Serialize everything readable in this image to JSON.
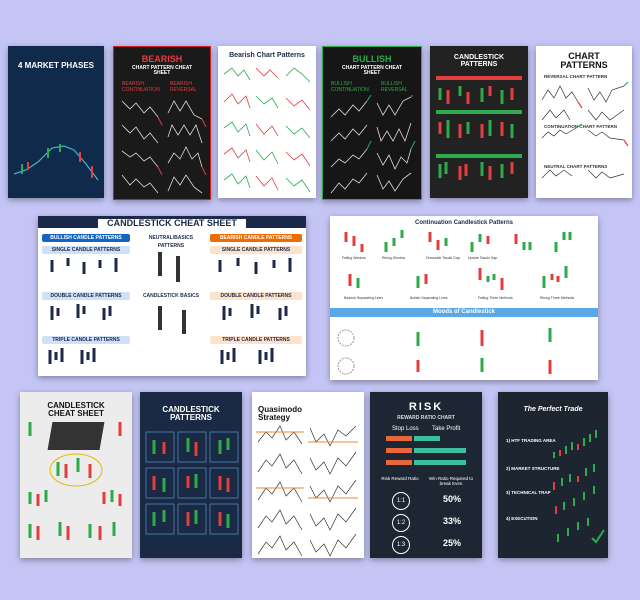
{
  "posters": {
    "p1": {
      "title": "4 MARKET PHASES"
    },
    "p2": {
      "title_bearish": "BEARISH",
      "title_sub": "CHART PATTERN CHEAT SHEET",
      "col1": "BEARISH CONTINUATION",
      "col2": "BEARISH REVERSAL",
      "items": [
        "Descending Triangle",
        "Double Top",
        "Bearish Wedge",
        "Triple Top",
        "Bearish Pennant",
        "Head & Shoulders",
        "Bearish Flag",
        "Rising Wedge"
      ]
    },
    "p3": {
      "title": "Bearish Chart Patterns"
    },
    "p4": {
      "title_bullish": "BULLISH",
      "title_sub": "CHART PATTERN CHEAT SHEET",
      "col1": "BULLISH CONTINUATION",
      "col2": "BULLISH REVERSAL",
      "items": [
        "Ascending Triangle",
        "Bullish Wedge",
        "Bullish Pennant",
        "Bullish Flag",
        "Double Bottom",
        "Triple Bottom",
        "Inverse H&S",
        "Falling Wedge"
      ]
    },
    "p5": {
      "title": "CANDLESTICK PATTERNS"
    },
    "p6": {
      "title": "CHART PATTERNS",
      "s1": "REVERSAL CHART PATTERN",
      "s2": "CONTINUATION CHART PATTERN",
      "s3": "NEUTRAL CHART PATTERNS"
    },
    "p7": {
      "title": "CANDLESTICK CHEAT SHEET",
      "bull": "BULLISH CANDLE PATTERNS",
      "neutral": "NEUTRAL/BASICS PATTERNS",
      "bear": "BEARISH CANDLE PATTERNS",
      "single": "SINGLE CANDLE PATTERNS",
      "double": "DOUBLE CANDLE PATTERNS",
      "triple": "TRIPLE CANDLE PATTERNS",
      "basics": "CANDLESTICK BASICS"
    },
    "p8": {
      "title": "Continuation Candlestick Patterns",
      "moods": "Moods of Candlestick",
      "items": [
        "Falling Window",
        "Rising Window",
        "Downside Tasuki Gap",
        "Upside Tasuki Gap",
        "Bearish Side-by-Side White Lines",
        "Bullish Side-by-Side White Lines",
        "Bearish Separating Lines",
        "Bullish Separating Lines",
        "Falling Three Methods",
        "Rising Three Methods"
      ]
    },
    "p9": {
      "title": "CANDLESTICK CHEAT SHEET"
    },
    "p10": {
      "title": "CANDLESTICK PATTERNS"
    },
    "p11": {
      "title": "Quasimodo Strategy"
    },
    "p12": {
      "title": "RISK",
      "subtitle": "REWARD RATIO CHART",
      "stop": "Stop Loss",
      "take": "Take Profit",
      "col_a": "Risk Reward Ratio",
      "col_b": "Win Ratio Required to break Even",
      "rows": [
        {
          "ratio": "1:1",
          "win": "50%"
        },
        {
          "ratio": "1:2",
          "win": "33%"
        },
        {
          "ratio": "1:3",
          "win": "25%"
        }
      ]
    },
    "p13": {
      "title": "The Perfect Trade",
      "steps": [
        "1) HTF TRADING AREA",
        "2) MARKET STRUCTURE",
        "3) TECHNICAL TRAP",
        "4) EXECUTION"
      ]
    },
    "brand": "Trading Materials"
  },
  "colors": {
    "background": "#c4c5f5",
    "bull": "#2eaa4a",
    "bear": "#e43d3d",
    "navy": "#1b2a4a"
  }
}
